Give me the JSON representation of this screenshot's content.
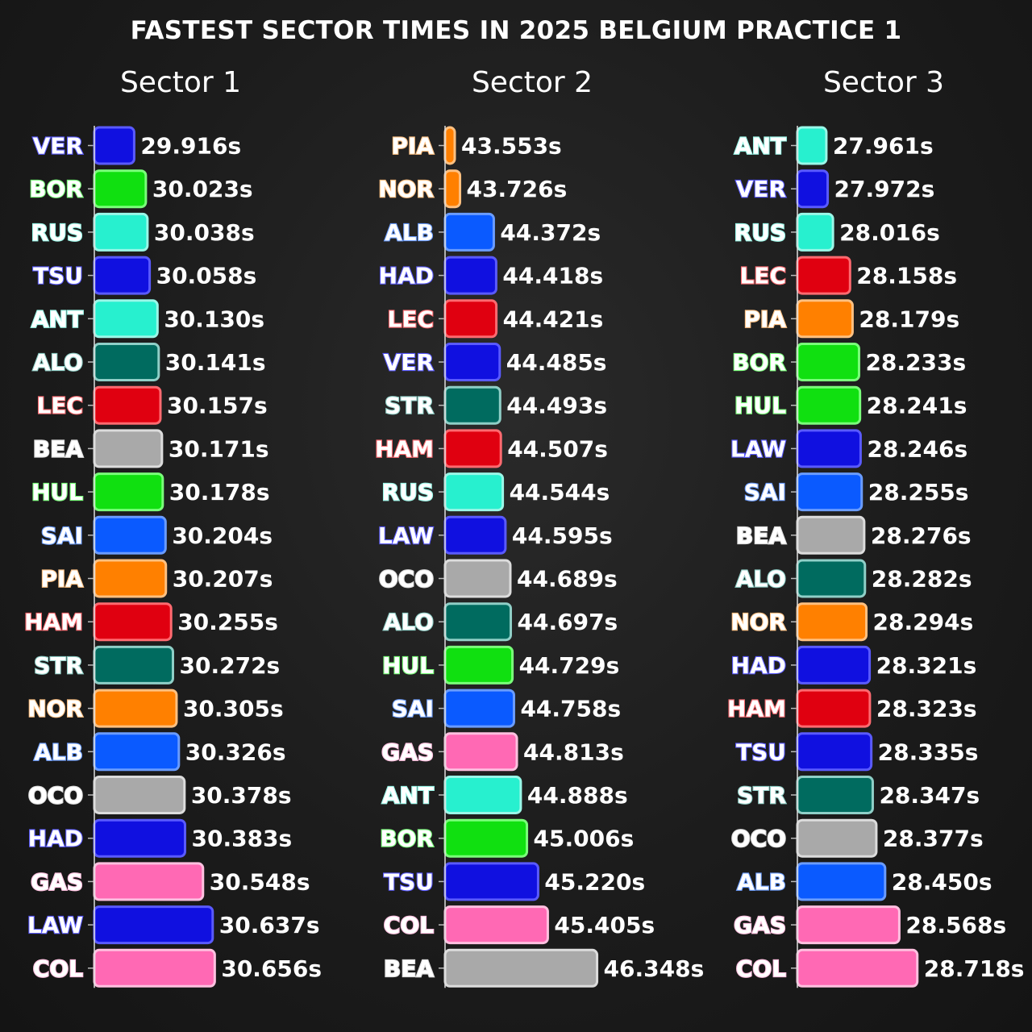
{
  "title": "FASTEST SECTOR TIMES IN 2025 BELGIUM PRACTICE 1",
  "team_colors": {
    "RBR": "#1010e0",
    "SAU": "#10e010",
    "MER": "#27f0cf",
    "RBL": "#1010e0",
    "AST": "#006b5f",
    "FER": "#e00010",
    "HAA": "#a9a9a9",
    "WIL": "#0a5aff",
    "MCL": "#ff8000",
    "ALP": "#ff69b4",
    "RAC": "#ffffff"
  },
  "outline_colors": {
    "RBR": "#5a5aff",
    "SAU": "#7aff7a",
    "MER": "#9af7e8",
    "RBL": "#5a5aff",
    "AST": "#8fcfc7",
    "FER": "#ff6a70",
    "HAA": "#dcdcdc",
    "WIL": "#6a9cff",
    "MCL": "#ffc080",
    "ALP": "#ffc0e0",
    "RAC": "#e090ff"
  },
  "chart_data": [
    {
      "type": "bar",
      "title": "Sector 1",
      "orientation": "horizontal",
      "xlim": [
        29.55,
        30.72
      ],
      "categories": [
        "VER",
        "BOR",
        "RUS",
        "TSU",
        "ANT",
        "ALO",
        "LEC",
        "BEA",
        "HUL",
        "SAI",
        "PIA",
        "HAM",
        "STR",
        "NOR",
        "ALB",
        "OCO",
        "HAD",
        "GAS",
        "LAW",
        "COL"
      ],
      "teams": [
        "RBR",
        "SAU",
        "MER",
        "RBL",
        "MER",
        "AST",
        "FER",
        "HAA",
        "SAU",
        "WIL",
        "MCL",
        "FER",
        "AST",
        "MCL",
        "WIL",
        "HAA",
        "RBL",
        "ALP",
        "RBR",
        "ALP"
      ],
      "values": [
        29.916,
        30.023,
        30.038,
        30.058,
        30.13,
        30.141,
        30.157,
        30.171,
        30.178,
        30.204,
        30.207,
        30.255,
        30.272,
        30.305,
        30.326,
        30.378,
        30.383,
        30.548,
        30.637,
        30.656
      ],
      "labels": [
        "29.916s",
        "30.023s",
        "30.038s",
        "30.058s",
        "30.130s",
        "30.141s",
        "30.157s",
        "30.171s",
        "30.178s",
        "30.204s",
        "30.207s",
        "30.255s",
        "30.272s",
        "30.305s",
        "30.326s",
        "30.378s",
        "30.383s",
        "30.548s",
        "30.637s",
        "30.656s"
      ]
    },
    {
      "type": "bar",
      "title": "Sector 2",
      "orientation": "horizontal",
      "xlim": [
        43.44,
        46.37
      ],
      "categories": [
        "PIA",
        "NOR",
        "ALB",
        "HAD",
        "LEC",
        "VER",
        "STR",
        "HAM",
        "RUS",
        "LAW",
        "OCO",
        "ALO",
        "HUL",
        "SAI",
        "GAS",
        "ANT",
        "BOR",
        "TSU",
        "COL",
        "BEA"
      ],
      "teams": [
        "MCL",
        "MCL",
        "WIL",
        "RBL",
        "FER",
        "RBR",
        "AST",
        "FER",
        "MER",
        "RBR",
        "HAA",
        "AST",
        "SAU",
        "WIL",
        "ALP",
        "MER",
        "SAU",
        "RBL",
        "ALP",
        "HAA"
      ],
      "values": [
        43.553,
        43.726,
        44.372,
        44.418,
        44.421,
        44.485,
        44.493,
        44.507,
        44.544,
        44.595,
        44.689,
        44.697,
        44.729,
        44.758,
        44.813,
        44.888,
        45.006,
        45.22,
        45.405,
        46.348
      ],
      "labels": [
        "43.553s",
        "43.726s",
        "44.372s",
        "44.418s",
        "44.421s",
        "44.485s",
        "44.493s",
        "44.507s",
        "44.544s",
        "44.595s",
        "44.689s",
        "44.697s",
        "44.729s",
        "44.758s",
        "44.813s",
        "44.888s",
        "45.006s",
        "45.220s",
        "45.405s",
        "46.348s"
      ]
    },
    {
      "type": "bar",
      "title": "Sector 3",
      "orientation": "horizontal",
      "xlim": [
        27.72,
        28.78
      ],
      "categories": [
        "ANT",
        "VER",
        "RUS",
        "LEC",
        "PIA",
        "BOR",
        "HUL",
        "LAW",
        "SAI",
        "BEA",
        "ALO",
        "NOR",
        "HAD",
        "HAM",
        "TSU",
        "STR",
        "OCO",
        "ALB",
        "GAS",
        "COL"
      ],
      "teams": [
        "MER",
        "RBR",
        "MER",
        "FER",
        "MCL",
        "SAU",
        "SAU",
        "RBR",
        "WIL",
        "HAA",
        "AST",
        "MCL",
        "RBL",
        "FER",
        "RBL",
        "AST",
        "HAA",
        "WIL",
        "ALP",
        "ALP"
      ],
      "values": [
        27.961,
        27.972,
        28.016,
        28.158,
        28.179,
        28.233,
        28.241,
        28.246,
        28.255,
        28.276,
        28.282,
        28.294,
        28.321,
        28.323,
        28.335,
        28.347,
        28.377,
        28.45,
        28.568,
        28.718
      ],
      "labels": [
        "27.961s",
        "27.972s",
        "28.016s",
        "28.158s",
        "28.179s",
        "28.233s",
        "28.241s",
        "28.246s",
        "28.255s",
        "28.276s",
        "28.282s",
        "28.294s",
        "28.321s",
        "28.323s",
        "28.335s",
        "28.347s",
        "28.377s",
        "28.450s",
        "28.568s",
        "28.718s"
      ]
    }
  ]
}
